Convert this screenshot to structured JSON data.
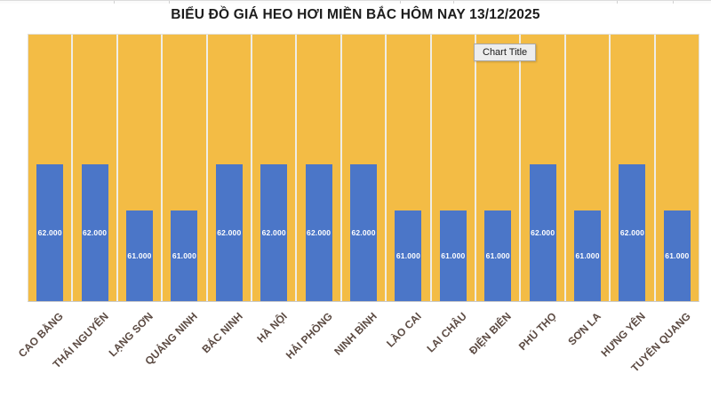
{
  "page": {
    "title": "BIỂU ĐỒ GIÁ HEO HƠI MIỀN BẮC HÔM NAY 13/12/2025"
  },
  "chart_overlay": {
    "chart_title_placeholder": "Chart Title"
  },
  "chart_data": {
    "type": "bar",
    "title": "BIỂU ĐỒ GIÁ HEO HƠI MIỀN BẮC HÔM NAY 13/12/2025",
    "categories": [
      "CAO BẰNG",
      "THÁI NGUYÊN",
      "LẠNG SƠN",
      "QUẢNG NINH",
      "BẮC NINH",
      "HÀ NỘI",
      "HẢI PHÒNG",
      "NINH BÌNH",
      "LÀO CAI",
      "LAI CHÂU",
      "ĐIỆN BIÊN",
      "PHÚ THỌ",
      "SƠN LA",
      "HƯNG YÊN",
      "TUYÊN QUANG"
    ],
    "values": [
      62000,
      62000,
      61000,
      61000,
      62000,
      62000,
      62000,
      62000,
      61000,
      61000,
      61000,
      62000,
      61000,
      62000,
      61000
    ],
    "value_labels": [
      "62.000",
      "62.000",
      "61.000",
      "61.000",
      "62.000",
      "62.000",
      "62.000",
      "62.000",
      "61.000",
      "61.000",
      "61.000",
      "62.000",
      "61.000",
      "62.000",
      "61.000"
    ],
    "xlabel": "",
    "ylabel": "",
    "ylim": [
      59000,
      64900
    ],
    "grid": "vertical-category-separators",
    "legend": "none",
    "colors": {
      "bar": "#4B76C8",
      "plot_background": "#F3BC45",
      "separator": "#EFEDE6",
      "category_label": "#5B4A42",
      "value_label": "#FFFFFF",
      "title": "#1C1C1C"
    }
  }
}
